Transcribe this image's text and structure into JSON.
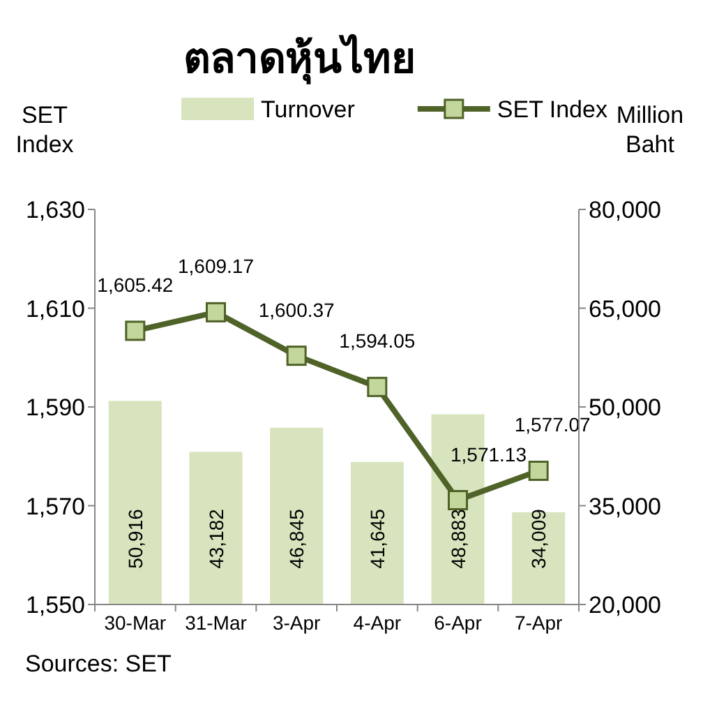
{
  "chart_data": {
    "type": "bar",
    "title": "ตลาดหุ้นไทย",
    "categories": [
      "30-Mar",
      "31-Mar",
      "3-Apr",
      "4-Apr",
      "6-Apr",
      "7-Apr"
    ],
    "series": [
      {
        "name": "Turnover",
        "axis": "y2",
        "color": "#d7e4bd",
        "values": [
          50916,
          43182,
          46845,
          41645,
          48883,
          34009
        ],
        "value_labels": [
          "50,916",
          "43,182",
          "46,845",
          "41,645",
          "48,883",
          "34,009"
        ]
      },
      {
        "name": "SET Index",
        "type": "line",
        "color": "#4f6228",
        "marker": "square",
        "values": [
          1605.42,
          1609.17,
          1600.37,
          1594.05,
          1571.13,
          1577.07
        ],
        "value_labels": [
          "1,605.42",
          "1,609.17",
          "1,600.37",
          "1,594.05",
          "1,571.13",
          "1,577.07"
        ]
      }
    ],
    "ylabel": "SET Index",
    "y2label": "Million Baht",
    "ylim": [
      1550,
      1630
    ],
    "yticks": [
      {
        "value": 1550,
        "label": "1,550"
      },
      {
        "value": 1570,
        "label": "1,570"
      },
      {
        "value": 1590,
        "label": "1,590"
      },
      {
        "value": 1610,
        "label": "1,610"
      },
      {
        "value": 1630,
        "label": "1,630"
      }
    ],
    "y2lim": [
      20000,
      80000
    ],
    "y2ticks": [
      {
        "value": 20000,
        "label": "20,000"
      },
      {
        "value": 35000,
        "label": "35,000"
      },
      {
        "value": 50000,
        "label": "50,000"
      },
      {
        "value": 65000,
        "label": "65,000"
      },
      {
        "value": 80000,
        "label": "80,000"
      }
    ],
    "legend": "top",
    "annotations": [
      "Sources: SET"
    ]
  }
}
